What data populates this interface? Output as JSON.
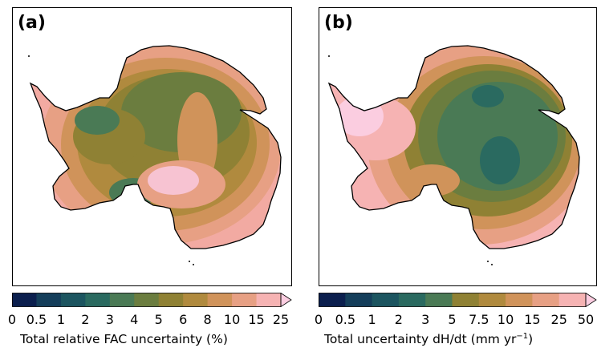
{
  "colormap": [
    "#0b1f4e",
    "#143e5a",
    "#1c5560",
    "#2a6a60",
    "#4a7a55",
    "#6b7d3f",
    "#8f8134",
    "#b08a3e",
    "#d0935a",
    "#e7a084",
    "#f6b3b3",
    "#fbcde0"
  ],
  "panels": [
    {
      "letter": "(a)",
      "colorbar_ticks": [
        "0",
        "0.5",
        "1",
        "2",
        "3",
        "4",
        "5",
        "6",
        "8",
        "10",
        "15",
        "25"
      ],
      "colorbar_label": "Total relative FAC uncertainty (%)",
      "colorbar_extend": "max"
    },
    {
      "letter": "(b)",
      "colorbar_ticks": [
        "0",
        "0.5",
        "1",
        "2",
        "3",
        "5",
        "7.5",
        "10",
        "15",
        "25",
        "50"
      ],
      "colorbar_label_main": "Total uncertainty dH/dt (mm yr",
      "colorbar_label_sup": "−1",
      "colorbar_label_end": ")",
      "colorbar_extend": "max"
    }
  ]
}
